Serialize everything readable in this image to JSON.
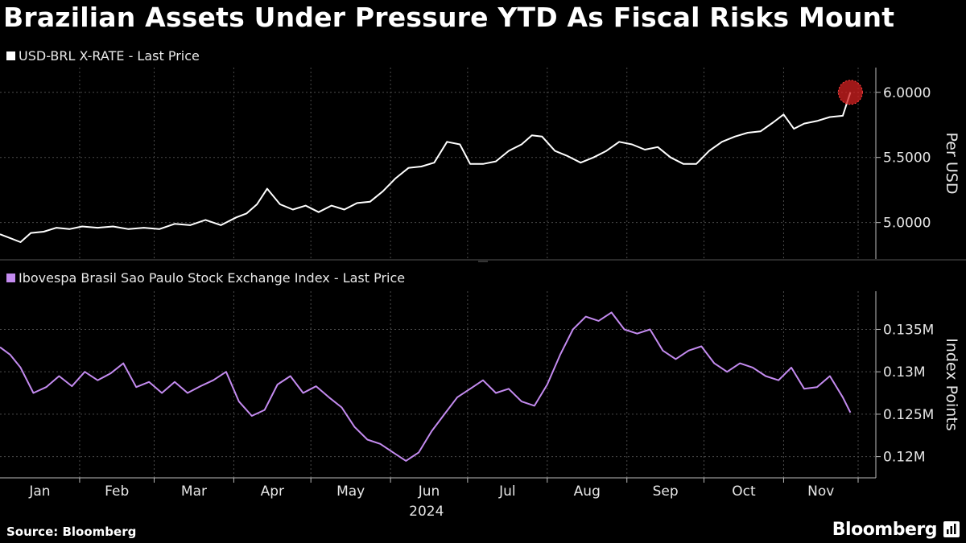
{
  "title": "Brazilian Assets Under Pressure YTD As Fiscal Risks Mount",
  "footer": {
    "source": "Source: Bloomberg",
    "brand": "Bloomberg"
  },
  "colors": {
    "usd": "#ffffff",
    "ibov": "#c48bf0",
    "highlight": "#d42020",
    "grid": "#4a4a4a",
    "background": "#000000"
  },
  "chart_data": [
    {
      "type": "line",
      "series_name": "USD-BRL X-RATE - Last Price",
      "ylabel": "Per USD",
      "yticks": [
        5.0,
        5.5,
        6.0
      ],
      "ytick_labels": [
        "5.0000",
        "5.5000",
        "6.0000"
      ],
      "ylim": [
        4.72,
        6.19
      ],
      "xlim": [
        "2024-01-01",
        "2024-11-30"
      ],
      "x_tick_labels": [
        "Jan",
        "Feb",
        "Mar",
        "Apr",
        "May",
        "Jun",
        "Jul",
        "Aug",
        "Sep",
        "Oct",
        "Nov"
      ],
      "x_year_label": "2024",
      "grid": true,
      "highlight": {
        "x": "2024-11-27",
        "y": 6.0
      },
      "x": [
        "2024-01-01",
        "2024-01-05",
        "2024-01-09",
        "2024-01-13",
        "2024-01-18",
        "2024-01-23",
        "2024-01-28",
        "2024-02-02",
        "2024-02-08",
        "2024-02-14",
        "2024-02-20",
        "2024-02-26",
        "2024-03-03",
        "2024-03-09",
        "2024-03-15",
        "2024-03-21",
        "2024-03-27",
        "2024-04-02",
        "2024-04-06",
        "2024-04-10",
        "2024-04-14",
        "2024-04-19",
        "2024-04-24",
        "2024-04-29",
        "2024-05-04",
        "2024-05-09",
        "2024-05-14",
        "2024-05-19",
        "2024-05-24",
        "2024-05-29",
        "2024-06-03",
        "2024-06-08",
        "2024-06-13",
        "2024-06-18",
        "2024-06-23",
        "2024-06-28",
        "2024-07-02",
        "2024-07-07",
        "2024-07-12",
        "2024-07-17",
        "2024-07-22",
        "2024-07-26",
        "2024-07-30",
        "2024-08-04",
        "2024-08-09",
        "2024-08-14",
        "2024-08-19",
        "2024-08-24",
        "2024-08-29",
        "2024-09-03",
        "2024-09-08",
        "2024-09-13",
        "2024-09-18",
        "2024-09-23",
        "2024-09-28",
        "2024-10-03",
        "2024-10-08",
        "2024-10-13",
        "2024-10-18",
        "2024-10-23",
        "2024-10-28",
        "2024-11-01",
        "2024-11-05",
        "2024-11-09",
        "2024-11-14",
        "2024-11-19",
        "2024-11-24",
        "2024-11-27"
      ],
      "y": [
        4.91,
        4.88,
        4.85,
        4.92,
        4.93,
        4.96,
        4.95,
        4.97,
        4.96,
        4.97,
        4.95,
        4.96,
        4.95,
        4.99,
        4.98,
        5.02,
        4.98,
        5.04,
        5.07,
        5.14,
        5.26,
        5.14,
        5.1,
        5.13,
        5.08,
        5.13,
        5.1,
        5.15,
        5.16,
        5.24,
        5.34,
        5.42,
        5.43,
        5.46,
        5.62,
        5.6,
        5.45,
        5.45,
        5.47,
        5.55,
        5.6,
        5.67,
        5.66,
        5.55,
        5.51,
        5.46,
        5.5,
        5.55,
        5.62,
        5.6,
        5.56,
        5.58,
        5.5,
        5.45,
        5.45,
        5.55,
        5.62,
        5.66,
        5.69,
        5.7,
        5.77,
        5.83,
        5.72,
        5.76,
        5.78,
        5.81,
        5.82,
        6.0
      ]
    },
    {
      "type": "line",
      "series_name": "Ibovespa Brasil Sao Paulo Stock Exchange Index - Last Price",
      "ylabel": "Index Points",
      "yticks": [
        120000,
        125000,
        130000,
        135000
      ],
      "ytick_labels": [
        "0.12M",
        "0.125M",
        "0.13M",
        "0.135M"
      ],
      "ylim": [
        117500,
        139500
      ],
      "xlim": [
        "2024-01-01",
        "2024-11-30"
      ],
      "grid": true,
      "x": [
        "2024-01-01",
        "2024-01-05",
        "2024-01-09",
        "2024-01-14",
        "2024-01-19",
        "2024-01-24",
        "2024-01-29",
        "2024-02-03",
        "2024-02-08",
        "2024-02-13",
        "2024-02-18",
        "2024-02-23",
        "2024-02-28",
        "2024-03-04",
        "2024-03-09",
        "2024-03-14",
        "2024-03-19",
        "2024-03-24",
        "2024-03-29",
        "2024-04-03",
        "2024-04-08",
        "2024-04-13",
        "2024-04-18",
        "2024-04-23",
        "2024-04-28",
        "2024-05-03",
        "2024-05-08",
        "2024-05-13",
        "2024-05-18",
        "2024-05-23",
        "2024-05-28",
        "2024-06-02",
        "2024-06-07",
        "2024-06-12",
        "2024-06-17",
        "2024-06-22",
        "2024-06-27",
        "2024-07-02",
        "2024-07-07",
        "2024-07-12",
        "2024-07-17",
        "2024-07-22",
        "2024-07-27",
        "2024-08-01",
        "2024-08-06",
        "2024-08-11",
        "2024-08-16",
        "2024-08-21",
        "2024-08-26",
        "2024-08-31",
        "2024-09-05",
        "2024-09-10",
        "2024-09-15",
        "2024-09-20",
        "2024-09-25",
        "2024-09-30",
        "2024-10-05",
        "2024-10-10",
        "2024-10-15",
        "2024-10-20",
        "2024-10-25",
        "2024-10-30",
        "2024-11-04",
        "2024-11-09",
        "2024-11-14",
        "2024-11-19",
        "2024-11-24",
        "2024-11-27"
      ],
      "y": [
        132900,
        132000,
        130500,
        127500,
        128200,
        129500,
        128300,
        130000,
        129000,
        129800,
        131000,
        128200,
        128800,
        127500,
        128800,
        127500,
        128300,
        129000,
        130000,
        126500,
        124800,
        125500,
        128500,
        129500,
        127500,
        128300,
        127000,
        125800,
        123500,
        122000,
        121500,
        120500,
        119500,
        120500,
        123000,
        125000,
        127000,
        128000,
        129000,
        127500,
        128000,
        126500,
        126000,
        128500,
        132000,
        135000,
        136500,
        136000,
        137000,
        135000,
        134500,
        135000,
        132500,
        131500,
        132500,
        133000,
        131000,
        130000,
        131000,
        130500,
        129500,
        129000,
        130500,
        128000,
        128200,
        129500,
        127000,
        125200
      ]
    }
  ]
}
